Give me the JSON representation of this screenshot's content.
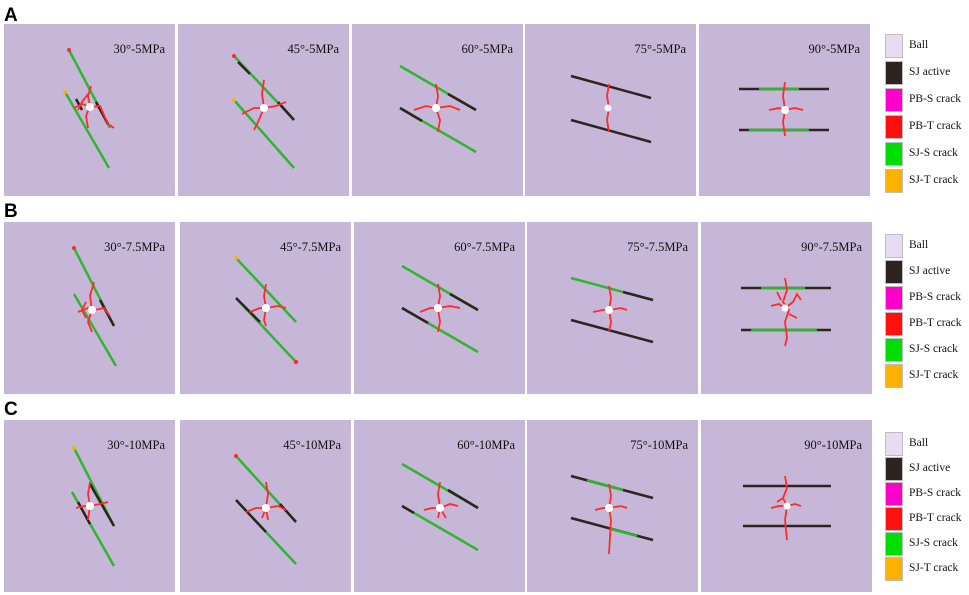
{
  "rows": [
    {
      "label": "A",
      "panels": [
        "30°-5MPa",
        "45°-5MPa",
        "60°-5MPa",
        "75°-5MPa",
        "90°-5MPa"
      ]
    },
    {
      "label": "B",
      "panels": [
        "30°-7.5MPa",
        "45°-7.5MPa",
        "60°-7.5MPa",
        "75°-7.5MPa",
        "90°-7.5MPa"
      ]
    },
    {
      "label": "C",
      "panels": [
        "30°-10MPa",
        "45°-10MPa",
        "60°-10MPa",
        "75°-10MPa",
        "90°-10MPa"
      ]
    }
  ],
  "legend": [
    {
      "label": "Ball",
      "color": "#e8dcf2"
    },
    {
      "label": "SJ active",
      "color": "#2e2320"
    },
    {
      "label": "PB-S crack",
      "color": "#ff00cc"
    },
    {
      "label": "PB-T crack",
      "color": "#ff1010"
    },
    {
      "label": "SJ-S crack",
      "color": "#00dd00"
    },
    {
      "label": "SJ-T crack",
      "color": "#ffb000"
    }
  ],
  "colors": {
    "panel_background": "#c6b7d9",
    "sj_active": "#2e2320",
    "sj_s_crack": "#2fb52f",
    "pb_t_crack": "#ff2a2a",
    "ball": "#ffffff"
  }
}
